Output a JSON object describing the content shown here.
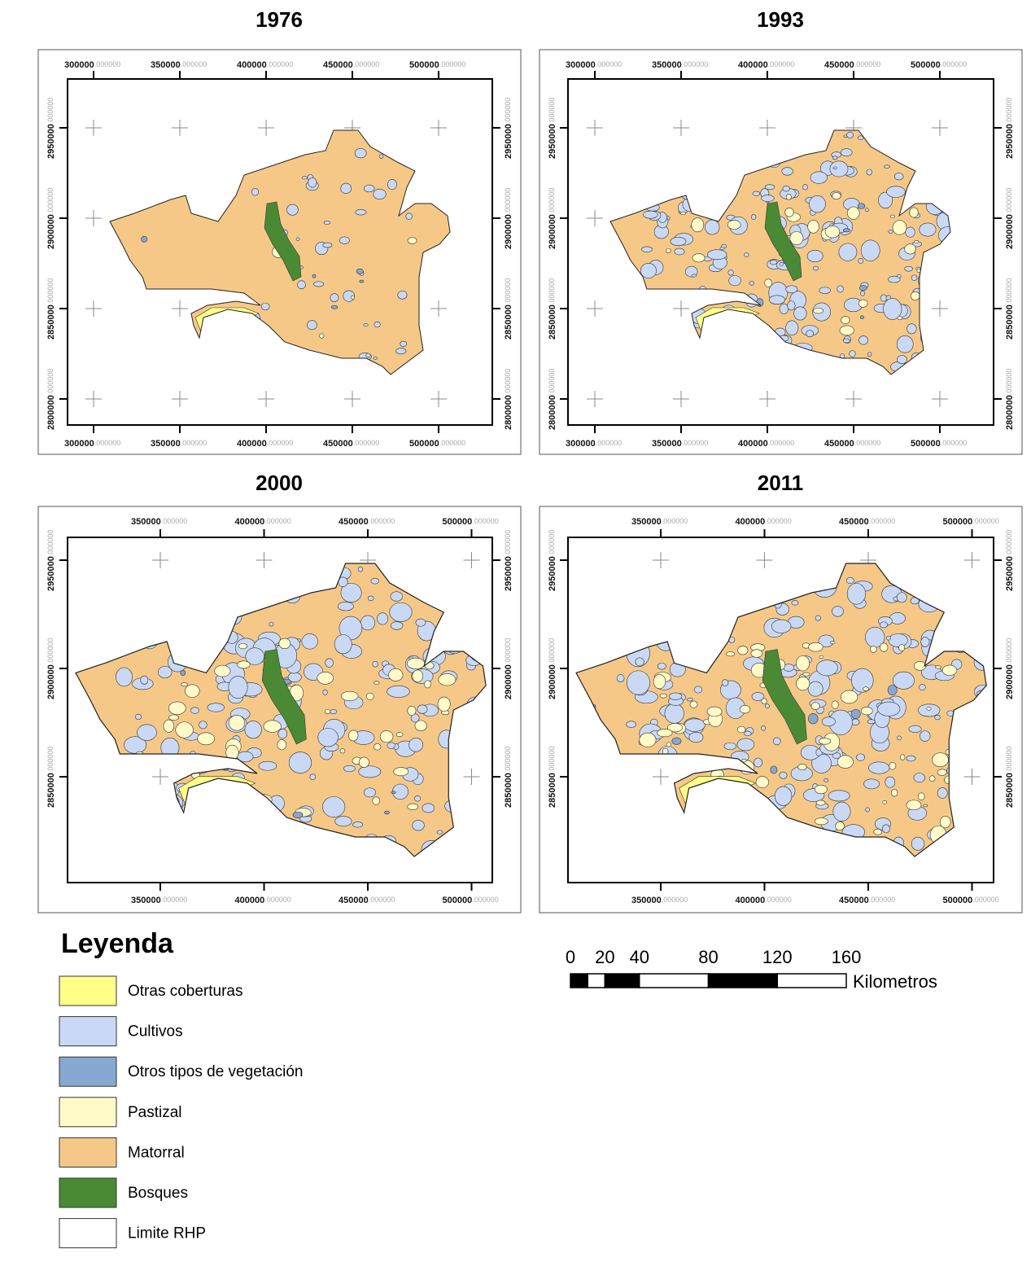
{
  "maps": [
    {
      "title": "1976",
      "x_ticks": [
        300000,
        350000,
        400000,
        450000,
        500000
      ],
      "y_ticks": [
        2950000,
        2900000,
        2850000,
        2800000
      ]
    },
    {
      "title": "1993",
      "x_ticks": [
        300000,
        350000,
        400000,
        450000,
        500000
      ],
      "y_ticks": [
        2950000,
        2900000,
        2850000,
        2800000
      ]
    },
    {
      "title": "2000",
      "x_ticks": [
        350000,
        400000,
        450000,
        500000
      ],
      "y_ticks": [
        2950000,
        2900000,
        2850000
      ]
    },
    {
      "title": "2011",
      "x_ticks": [
        350000,
        400000,
        450000,
        500000
      ],
      "y_ticks": [
        2950000,
        2900000,
        2850000
      ]
    }
  ],
  "coord_decimals": ".000000",
  "legend": {
    "title": "Leyenda",
    "items": [
      {
        "label": "Otras coberturas",
        "color": "#ffff88"
      },
      {
        "label": "Cultivos",
        "color": "#c9d9f5"
      },
      {
        "label": "Otros tipos de vegetación",
        "color": "#87a8d0"
      },
      {
        "label": "Pastizal",
        "color": "#fffac8"
      },
      {
        "label": "Matorral",
        "color": "#f6c888"
      },
      {
        "label": "Bosques",
        "color": "#4a8a35"
      },
      {
        "label": "Limite RHP",
        "color": "#ffffff"
      }
    ]
  },
  "scale_bar": {
    "ticks": [
      0,
      20,
      40,
      80,
      120,
      160
    ],
    "unit": "Kilometros"
  }
}
